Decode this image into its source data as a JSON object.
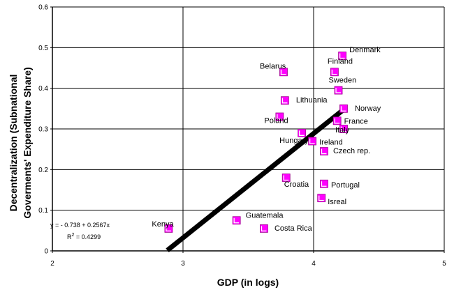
{
  "chart_data": {
    "type": "scatter",
    "xlabel": "GDP (in logs)",
    "ylabel_lines": [
      "Decentralization (Subnational",
      "Goverments' Expenditure Share)"
    ],
    "xlim": [
      2,
      5
    ],
    "ylim": [
      0,
      0.6
    ],
    "xticks": [
      "2",
      "3",
      "4",
      "5"
    ],
    "yticks": [
      "0",
      "0.1",
      "0.2",
      "0.3",
      "0.4",
      "0.5",
      "0.6"
    ],
    "grid": true,
    "marker_color": "#ff00ff",
    "points": [
      {
        "label": "Denmark",
        "x": 4.22,
        "y": 0.48
      },
      {
        "label": "Finland",
        "x": 4.16,
        "y": 0.44
      },
      {
        "label": "Belarus",
        "x": 3.77,
        "y": 0.44
      },
      {
        "label": "Sweden",
        "x": 4.19,
        "y": 0.395
      },
      {
        "label": "Lithuania",
        "x": 3.78,
        "y": 0.37
      },
      {
        "label": "Norway",
        "x": 4.23,
        "y": 0.35
      },
      {
        "label": "Poland",
        "x": 3.74,
        "y": 0.33
      },
      {
        "label": "France",
        "x": 4.18,
        "y": 0.32
      },
      {
        "label": "Italy",
        "x": 4.23,
        "y": 0.3
      },
      {
        "label": "Hungary",
        "x": 3.91,
        "y": 0.29
      },
      {
        "label": "Ireland",
        "x": 3.99,
        "y": 0.27
      },
      {
        "label": "Czech rep.",
        "x": 4.08,
        "y": 0.245
      },
      {
        "label": "Croatia",
        "x": 3.79,
        "y": 0.18
      },
      {
        "label": "Portugal",
        "x": 4.08,
        "y": 0.165
      },
      {
        "label": "Isreal",
        "x": 4.06,
        "y": 0.13
      },
      {
        "label": "Guatemala",
        "x": 3.41,
        "y": 0.075
      },
      {
        "label": "Kenya",
        "x": 2.89,
        "y": 0.055
      },
      {
        "label": "Costa Rica",
        "x": 3.62,
        "y": 0.055
      }
    ],
    "trendline": {
      "x_start": 2.88,
      "x_end": 4.23,
      "intercept": -0.738,
      "slope": 0.2567
    },
    "equation_text": "y =  - 0.738 + 0.2567x",
    "r2_prefix": "R",
    "r2_sup": "2",
    "r2_suffix": " = 0.4299"
  }
}
